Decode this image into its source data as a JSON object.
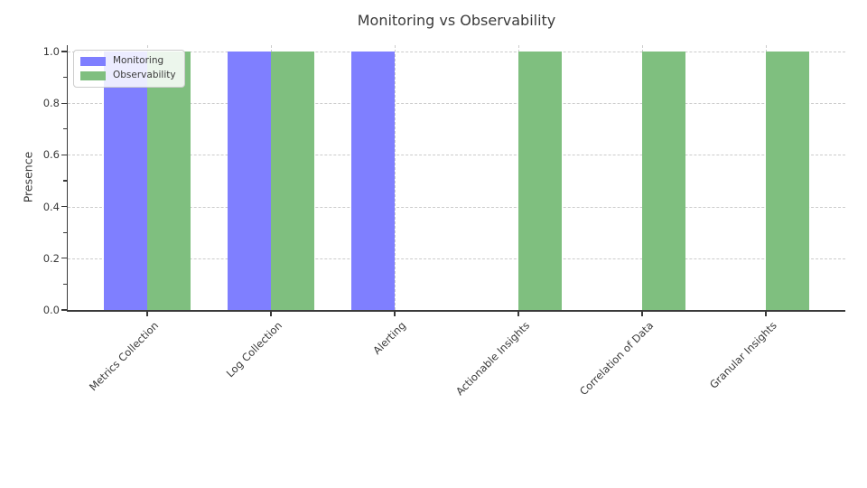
{
  "chart_data": {
    "type": "bar",
    "title": "Monitoring vs Observability",
    "xlabel": "",
    "ylabel": "Presence",
    "categories": [
      "Metrics Collection",
      "Log Collection",
      "Alerting",
      "Actionable Insights",
      "Correlation of Data",
      "Granular Insights"
    ],
    "series": [
      {
        "name": "Monitoring",
        "color": "#7f7fff",
        "values": [
          1,
          1,
          1,
          0,
          0,
          0
        ]
      },
      {
        "name": "Observability",
        "color": "#7fbf7f",
        "values": [
          1,
          1,
          0,
          1,
          1,
          1
        ]
      }
    ],
    "ytick_values": [
      0.0,
      0.2,
      0.4,
      0.6,
      0.8,
      1.0
    ],
    "ytick_labels": [
      "0.0",
      "0.2",
      "0.4",
      "0.6",
      "0.8",
      "1.0"
    ],
    "minor_ytick_values": [
      0.1,
      0.3,
      0.5,
      0.7,
      0.9
    ],
    "ylim": [
      0,
      1.025
    ],
    "grid": {
      "visible": true,
      "style": "dashed",
      "color": "#cccccc",
      "axes": "both"
    },
    "legend": {
      "position": "upper left"
    },
    "colors": {
      "axis": "#3a3a3a",
      "text": "#3a3a3a",
      "background": "#ffffff"
    }
  }
}
